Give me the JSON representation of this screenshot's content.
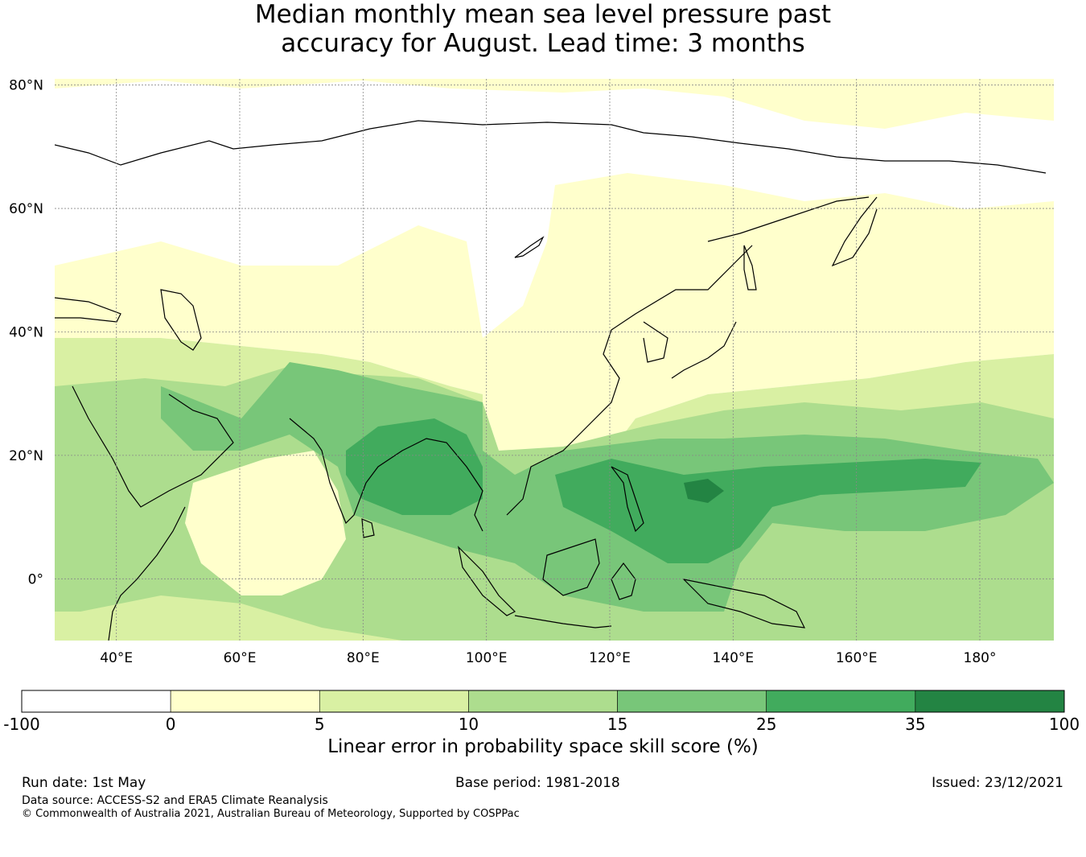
{
  "title_line1": "Median monthly mean sea level pressure past",
  "title_line2": "accuracy for August. Lead time: 3 months",
  "map": {
    "lat_ticks": [
      "80°N",
      "60°N",
      "40°N",
      "20°N",
      "0°"
    ],
    "lon_ticks": [
      "40°E",
      "60°E",
      "80°E",
      "100°E",
      "120°E",
      "140°E",
      "160°E",
      "180°"
    ],
    "lon_range": [
      30,
      192
    ],
    "lat_range": [
      -10,
      81
    ],
    "gridlines": true
  },
  "legend": {
    "label": "Linear error in probability space skill score (%)",
    "boundaries": [
      "-100",
      "0",
      "5",
      "10",
      "15",
      "25",
      "35",
      "100"
    ],
    "colors": [
      "#ffffff",
      "#ffffcc",
      "#d9f0a3",
      "#addd8e",
      "#78c679",
      "#41ab5d",
      "#238443"
    ]
  },
  "footer": {
    "run_date": "Run date: 1st May",
    "base_period": "Base period: 1981-2018",
    "issued": "Issued: 23/12/2021",
    "data_source": "Data source: ACCESS-S2 and ERA5 Climate Reanalysis",
    "copyright": "© Commonwealth of Australia 2021, Australian Bureau of Meteorology, Supported by COSPPac"
  }
}
